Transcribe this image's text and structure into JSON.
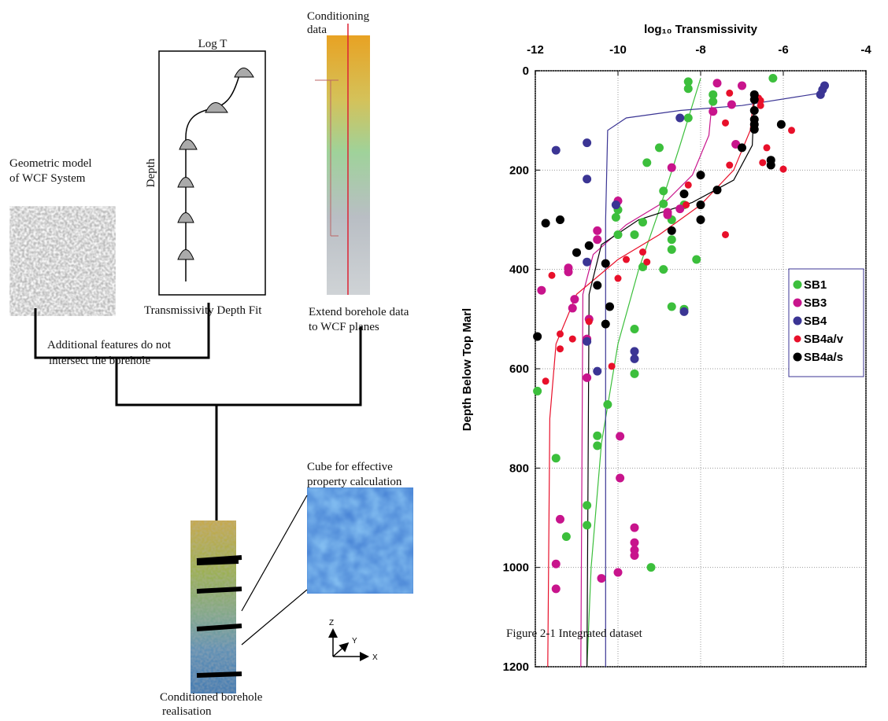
{
  "chart_data": {
    "type": "scatter",
    "title": "log₁₀ Transmissivity",
    "y_label": "Depth Below Top Marl",
    "xlim": [
      -12,
      -4
    ],
    "xticks": [
      -12,
      -10,
      -8,
      -6,
      -4
    ],
    "x_axis_position": "top",
    "ylim": [
      0,
      1200
    ],
    "yticks": [
      0,
      200,
      400,
      600,
      800,
      1000,
      1200
    ],
    "y_inverted": true,
    "grid": true,
    "legend": "center-right",
    "series": [
      {
        "name": "SB1",
        "color": "#3cbf3c",
        "marker_size": 5.5,
        "x": [
          -8.3,
          -8.3,
          -7.7,
          -7.7,
          -6.25,
          -8.3,
          -9.0,
          -9.3,
          -8.9,
          -8.9,
          -10.0,
          -10.05,
          -9.6,
          -10.0,
          -9.4,
          -8.7,
          -8.7,
          -8.7,
          -9.4,
          -8.9,
          -8.1,
          -8.4,
          -8.7,
          -8.4,
          -9.6,
          -9.6,
          -10.25,
          -10.5,
          -10.5,
          -11.95,
          -11.5,
          -10.75,
          -10.75,
          -11.25,
          -9.2
        ],
        "values": [
          22,
          36,
          48,
          62,
          15,
          95,
          155,
          185,
          242,
          268,
          280,
          295,
          330,
          330,
          305,
          300,
          340,
          360,
          395,
          400,
          380,
          270,
          475,
          480,
          520,
          610,
          672,
          735,
          755,
          645,
          780,
          875,
          915,
          938,
          1000
        ],
        "fit": {
          "x": [
            -8.0,
            -8.5,
            -9.0,
            -9.5,
            -10.0,
            -10.4,
            -10.65,
            -10.75
          ],
          "values": [
            15,
            150,
            280,
            400,
            550,
            750,
            1000,
            1200
          ]
        }
      },
      {
        "name": "SB3",
        "color": "#c8148c",
        "marker_size": 5.5,
        "x": [
          -7.6,
          -7.0,
          -7.25,
          -7.7,
          -7.15,
          -8.7,
          -8.8,
          -8.8,
          -8.5,
          -10.0,
          -10.5,
          -10.5,
          -11.2,
          -11.2,
          -11.85,
          -11.05,
          -11.1,
          -10.7,
          -10.75,
          -10.75,
          -9.95,
          -9.95,
          -11.4,
          -9.6,
          -9.6,
          -9.6,
          -9.6,
          -10.0,
          -10.4,
          -11.5,
          -11.5
        ],
        "values": [
          25,
          30,
          68,
          82,
          148,
          195,
          285,
          290,
          278,
          262,
          322,
          340,
          397,
          405,
          442,
          460,
          478,
          500,
          540,
          618,
          736,
          820,
          903,
          920,
          950,
          965,
          976,
          1010,
          1022,
          993,
          1043
        ],
        "fit": {
          "x": [
            -7.7,
            -7.8,
            -8.2,
            -8.8,
            -9.8,
            -10.6,
            -10.85,
            -10.9
          ],
          "values": [
            40,
            130,
            210,
            260,
            310,
            370,
            450,
            1200
          ]
        }
      },
      {
        "name": "SB4",
        "color": "#3b3594",
        "marker_size": 5.5,
        "x": [
          -5.0,
          -5.05,
          -5.1,
          -8.5,
          -10.75,
          -11.5,
          -10.75,
          -10.05,
          -10.75,
          -10.75,
          -10.5,
          -9.6,
          -9.6,
          -8.4
        ],
        "values": [
          30,
          38,
          48,
          95,
          145,
          160,
          218,
          270,
          385,
          545,
          605,
          565,
          580,
          485
        ],
        "fit": {
          "x": [
            -5.1,
            -7.0,
            -8.5,
            -9.8,
            -10.25,
            -10.3,
            -10.3
          ],
          "values": [
            45,
            70,
            80,
            95,
            120,
            300,
            1200
          ]
        }
      },
      {
        "name": "SB4a/v",
        "color": "#e8102a",
        "marker_size": 4.5,
        "x": [
          -7.3,
          -6.6,
          -6.55,
          -6.55,
          -7.4,
          -5.8,
          -6.4,
          -6.5,
          -6.0,
          -7.3,
          -8.3,
          -8.35,
          -9.4,
          -9.3,
          -9.8,
          -10.0,
          -7.4,
          -11.6,
          -11.4,
          -11.4,
          -11.1,
          -11.75,
          -10.15,
          -10.7
        ],
        "values": [
          45,
          55,
          70,
          60,
          105,
          120,
          155,
          185,
          198,
          190,
          230,
          270,
          365,
          385,
          380,
          418,
          330,
          412,
          530,
          560,
          540,
          625,
          595,
          505
        ],
        "fit": {
          "x": [
            -6.7,
            -6.8,
            -7.2,
            -8.0,
            -9.0,
            -10.0,
            -11.0,
            -11.5,
            -11.65,
            -11.7
          ],
          "values": [
            40,
            120,
            200,
            270,
            330,
            380,
            450,
            550,
            700,
            1200
          ]
        }
      },
      {
        "name": "SB4a/s",
        "color": "#000000",
        "marker_size": 5.5,
        "x": [
          -6.7,
          -6.7,
          -6.7,
          -6.7,
          -6.7,
          -6.7,
          -6.05,
          -6.3,
          -6.3,
          -7.0,
          -8.0,
          -8.0,
          -8.0,
          -7.6,
          -8.4,
          -8.7,
          -11.4,
          -11.75,
          -10.7,
          -11.0,
          -10.3,
          -10.5,
          -10.2,
          -10.3,
          -11.95
        ],
        "values": [
          48,
          58,
          80,
          98,
          108,
          118,
          108,
          180,
          190,
          155,
          210,
          270,
          300,
          240,
          248,
          322,
          300,
          307,
          352,
          366,
          388,
          432,
          475,
          510,
          535
        ],
        "fit": {
          "x": [
            -6.7,
            -6.75,
            -7.2,
            -8.2,
            -9.5,
            -10.4,
            -10.7,
            -10.75
          ],
          "values": [
            50,
            150,
            220,
            265,
            300,
            350,
            450,
            1200
          ]
        }
      }
    ]
  },
  "diagram": {
    "conditioning": [
      "Conditioning",
      "data"
    ],
    "log_t": "Log T",
    "depth": "Depth",
    "geometric_model": [
      "Geometric model",
      "of WCF System"
    ],
    "fit_caption": "Transmissivity Depth Fit",
    "extend": [
      "Extend borehole data",
      "to WCF planes"
    ],
    "additional": [
      "Additional  features do not",
      "intersect the borehole"
    ],
    "cube": [
      "Cube for effective",
      "property calculation"
    ],
    "borehole": [
      "Conditioned borehole",
      "realisation"
    ],
    "axes": [
      "Z",
      "Y",
      "X"
    ]
  },
  "caption": "Figure 2-1 Integrated dataset"
}
